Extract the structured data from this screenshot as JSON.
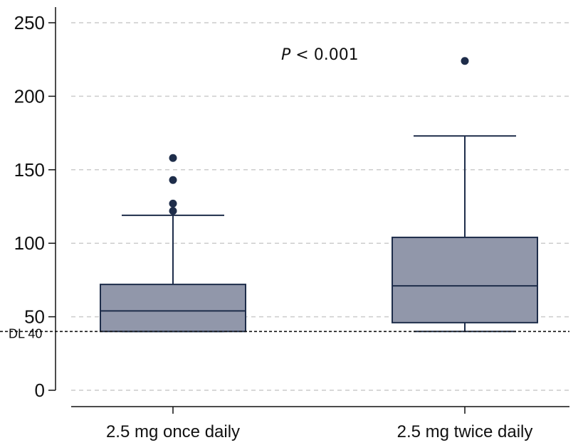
{
  "chart_data": {
    "type": "box",
    "title": "",
    "xlabel": "",
    "ylabel": "",
    "ylim": [
      0,
      250
    ],
    "yticks": [
      0,
      50,
      100,
      150,
      200,
      250
    ],
    "grid": true,
    "categories": [
      "2.5 mg once daily",
      "2.5 mg twice daily"
    ],
    "boxes": [
      {
        "category": "2.5 mg once daily",
        "whisker_low": 40,
        "q1": 40,
        "median": 54,
        "q3": 72,
        "whisker_high": 119,
        "outliers": [
          122,
          127,
          143,
          158
        ]
      },
      {
        "category": "2.5 mg twice daily",
        "whisker_low": 40,
        "q1": 46,
        "median": 71,
        "q3": 104,
        "whisker_high": 173,
        "outliers": [
          224
        ]
      }
    ],
    "reference_line": {
      "value": 40,
      "label": "DL 40"
    },
    "annotation": {
      "italic": "P",
      "rest": " < 0.001"
    },
    "colors": {
      "box_fill": "#9197aa",
      "box_stroke": "#1e2d4a",
      "outlier": "#1e2d4a",
      "grid": "#cccccc"
    }
  }
}
